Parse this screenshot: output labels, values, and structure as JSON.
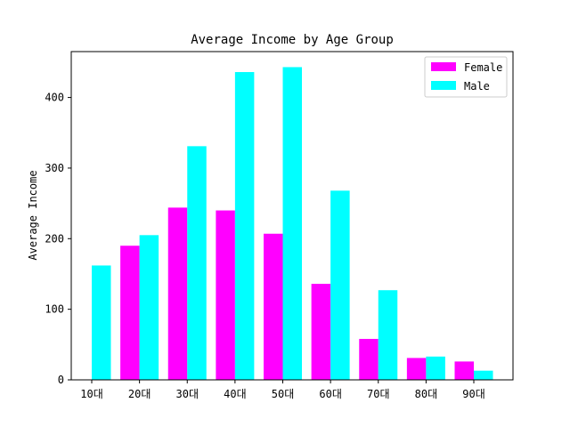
{
  "chart_data": {
    "type": "bar",
    "title": "Average Income by Age Group",
    "xlabel": "",
    "ylabel": "Average Income",
    "categories": [
      "10대",
      "20대",
      "30대",
      "40대",
      "50대",
      "60대",
      "70대",
      "80대",
      "90대"
    ],
    "series": [
      {
        "name": "Female",
        "color": "#ff00ff",
        "values": [
          0,
          190,
          244,
          240,
          207,
          136,
          58,
          31,
          26
        ]
      },
      {
        "name": "Male",
        "color": "#00ffff",
        "values": [
          162,
          205,
          331,
          436,
          443,
          268,
          127,
          33,
          13
        ]
      }
    ],
    "ylim": [
      0,
      465
    ],
    "yticks": [
      0,
      100,
      200,
      300,
      400
    ],
    "grid": false,
    "legend": "top-right"
  }
}
